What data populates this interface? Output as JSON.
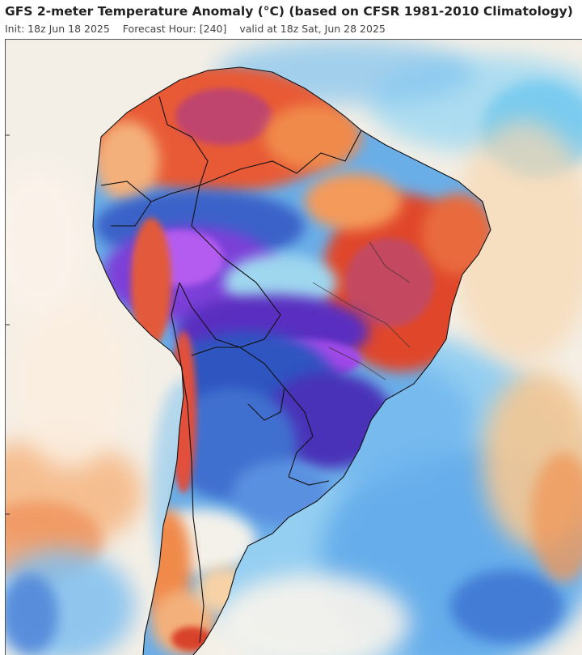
{
  "header": {
    "title": "GFS 2-meter Temperature Anomaly (°C) (based on CFSR 1981-2010 Climatology)",
    "init": "Init: 18z Jun 18 2025",
    "forecast_hour": "Forecast Hour: [240]",
    "valid": "valid at 18z Sat, Jun 28 2025"
  },
  "map": {
    "region": "South America",
    "variable": "2-meter temperature anomaly",
    "colors": {
      "ocean_background": "#f3f1e8",
      "warm_strong": "#d8432a",
      "warm": "#f08a4b",
      "warm_light": "#f7c28e",
      "neutral": "#f4efe6",
      "cool_light": "#b6e6f2",
      "cool": "#58a8e6",
      "cold": "#2f5fc8",
      "very_cold": "#4a2fb0",
      "extreme_cold": "#9a48e8",
      "hot_core": "#c0446e",
      "borders": "#111111"
    }
  }
}
